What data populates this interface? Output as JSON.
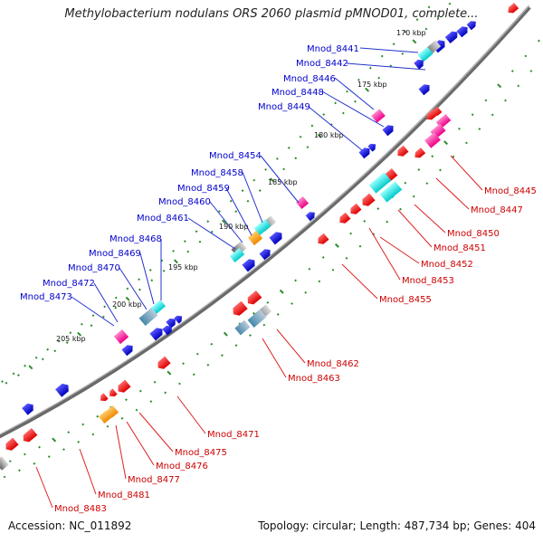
{
  "title": "Methylobacterium nodulans ORS 2060 plasmid pMNOD01, complete...",
  "footer": {
    "accession": "Accession: NC_011892",
    "summary": "Topology: circular; Length: 487,734 bp; Genes: 404"
  },
  "colors": {
    "backbone": "#8a8a8a",
    "tick_dots": "#2e8b2e",
    "forward_genes": "#0000dd",
    "reverse_genes": "#ee0000",
    "cyan": "#00e5e5",
    "magenta": "#ff33aa",
    "orange": "#ff9900",
    "steel": "#5a8ab5",
    "grey": "#8c8c8c"
  },
  "ticks": [
    "170 kbp",
    "175 kbp",
    "180 kbp",
    "185 kbp",
    "190 kbp",
    "195 kbp",
    "200 kbp",
    "205 kbp"
  ],
  "forward_labels": [
    "Mnod_8441",
    "Mnod_8442",
    "Mnod_8446",
    "Mnod_8448",
    "Mnod_8449",
    "Mnod_8454",
    "Mnod_8458",
    "Mnod_8459",
    "Mnod_8460",
    "Mnod_8461",
    "Mnod_8468",
    "Mnod_8469",
    "Mnod_8470",
    "Mnod_8472",
    "Mnod_8473"
  ],
  "reverse_labels": [
    "Mnod_8445",
    "Mnod_8447",
    "Mnod_8450",
    "Mnod_8451",
    "Mnod_8452",
    "Mnod_8453",
    "Mnod_8455",
    "Mnod_8462",
    "Mnod_8463",
    "Mnod_8471",
    "Mnod_8475",
    "Mnod_8476",
    "Mnod_8477",
    "Mnod_8481",
    "Mnod_8483"
  ]
}
